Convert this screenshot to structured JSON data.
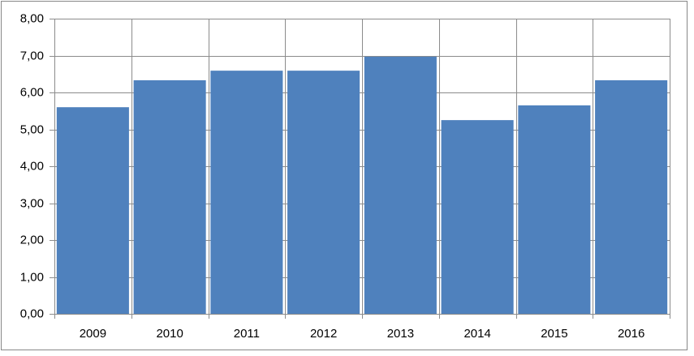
{
  "chart_data": {
    "type": "bar",
    "categories": [
      "2009",
      "2010",
      "2011",
      "2012",
      "2013",
      "2014",
      "2015",
      "2016"
    ],
    "values": [
      5.6,
      6.33,
      6.59,
      6.59,
      6.97,
      5.25,
      5.65,
      6.33
    ],
    "color": "#4f81bd",
    "ylim": [
      0,
      8
    ],
    "yticks": [
      {
        "value": 0,
        "label": "0,00"
      },
      {
        "value": 1,
        "label": "1,00"
      },
      {
        "value": 2,
        "label": "2,00"
      },
      {
        "value": 3,
        "label": "3,00"
      },
      {
        "value": 4,
        "label": "4,00"
      },
      {
        "value": 5,
        "label": "5,00"
      },
      {
        "value": 6,
        "label": "6,00"
      },
      {
        "value": 7,
        "label": "7,00"
      },
      {
        "value": 8,
        "label": "8,00"
      }
    ],
    "grid": true
  }
}
